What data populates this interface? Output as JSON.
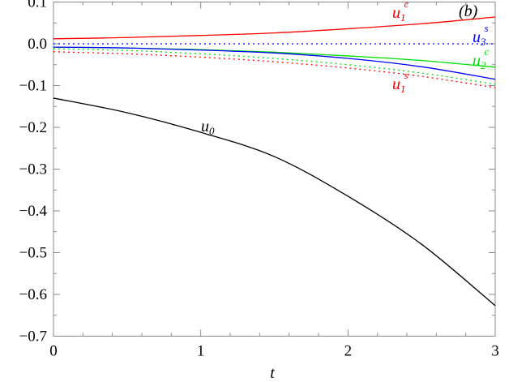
{
  "chart_data": {
    "type": "line",
    "panel_label": "(b)",
    "xlabel": "t",
    "ylabel": "",
    "xlim": [
      0,
      3
    ],
    "ylim": [
      -0.7,
      0.1
    ],
    "x_ticks": [
      "0",
      "1",
      "2",
      "3"
    ],
    "y_ticks": [
      "0.1",
      "0.0",
      "−0.1",
      "−0.2",
      "−0.3",
      "−0.4",
      "−0.5",
      "−0.6",
      "−0.7"
    ],
    "grid": false,
    "x": [
      0,
      0.5,
      1,
      1.5,
      2,
      2.5,
      3
    ],
    "series": [
      {
        "name": "u0",
        "label_main": "u",
        "label_sub": "0",
        "label_sup": "",
        "color": "#000000",
        "dash": false,
        "values": [
          -0.13,
          -0.165,
          -0.212,
          -0.27,
          -0.365,
          -0.48,
          -0.627
        ]
      },
      {
        "name": "u1c",
        "label_main": "u",
        "label_sub": "1",
        "label_sup": "c",
        "color": "#ff0000",
        "dash": false,
        "values": [
          0.012,
          0.015,
          0.02,
          0.026,
          0.036,
          0.048,
          0.064
        ]
      },
      {
        "name": "u3s",
        "label_main": "u",
        "label_sub": "3",
        "label_sup": "s",
        "color": "#0000ff",
        "dash": true,
        "values": [
          0,
          0,
          0,
          0,
          0,
          0,
          0
        ]
      },
      {
        "name": "u2c",
        "label_main": "u",
        "label_sub": "2",
        "label_sup": "c",
        "color": "#00dd00",
        "dash": false,
        "values": [
          -0.008,
          -0.01,
          -0.014,
          -0.02,
          -0.029,
          -0.04,
          -0.056
        ]
      },
      {
        "name": "u1s",
        "label_main": "u",
        "label_sub": "1",
        "label_sup": "s",
        "color": "#ff0000",
        "dash": true,
        "values": [
          -0.019,
          -0.024,
          -0.032,
          -0.043,
          -0.058,
          -0.078,
          -0.105
        ]
      },
      {
        "color": "#0000ff",
        "dash": false,
        "values": [
          -0.008,
          -0.01,
          -0.015,
          -0.022,
          -0.035,
          -0.055,
          -0.085
        ]
      },
      {
        "color": "#00dd00",
        "dash": true,
        "values": [
          -0.012,
          -0.016,
          -0.024,
          -0.035,
          -0.05,
          -0.07,
          -0.097
        ]
      }
    ]
  }
}
